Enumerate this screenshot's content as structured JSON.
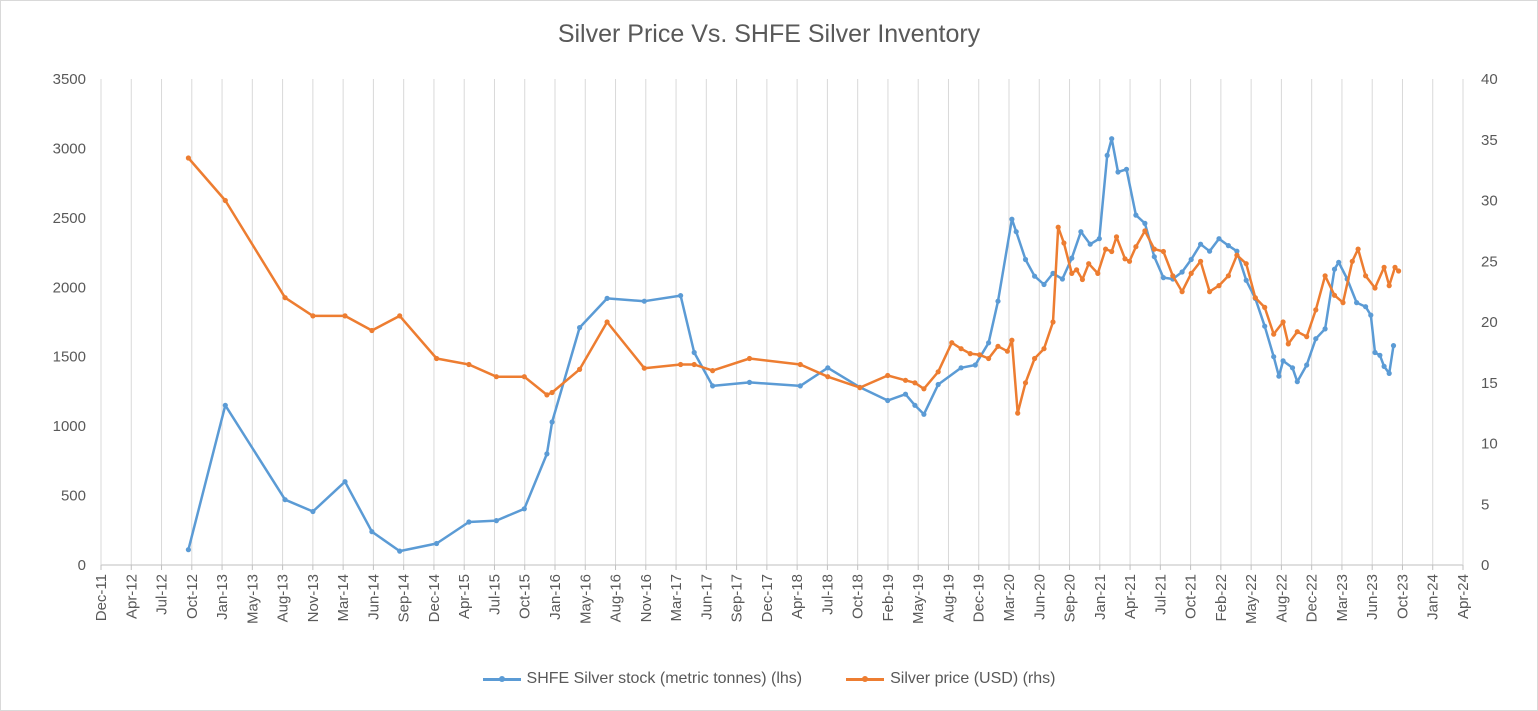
{
  "chart_data": {
    "type": "line",
    "title": "Silver Price Vs. SHFE Silver Inventory",
    "x_ticks": [
      "Dec-11",
      "Apr-12",
      "Jul-12",
      "Oct-12",
      "Jan-13",
      "May-13",
      "Aug-13",
      "Nov-13",
      "Mar-14",
      "Jun-14",
      "Sep-14",
      "Dec-14",
      "Apr-15",
      "Jul-15",
      "Oct-15",
      "Jan-16",
      "May-16",
      "Aug-16",
      "Nov-16",
      "Mar-17",
      "Jun-17",
      "Sep-17",
      "Dec-17",
      "Apr-18",
      "Jul-18",
      "Oct-18",
      "Feb-19",
      "May-19",
      "Aug-19",
      "Dec-19",
      "Mar-20",
      "Jun-20",
      "Sep-20",
      "Jan-21",
      "Apr-21",
      "Jul-21",
      "Oct-21",
      "Feb-22",
      "May-22",
      "Aug-22",
      "Dec-22",
      "Mar-23",
      "Jun-23",
      "Oct-23",
      "Jan-24",
      "Apr-24"
    ],
    "xlim": [
      "2011-12-01",
      "2024-04-01"
    ],
    "y_left": {
      "ylim": [
        0,
        3500
      ],
      "ticks": [
        "0",
        "500",
        "1000",
        "1500",
        "2000",
        "2500",
        "3000",
        "3500"
      ]
    },
    "y_right": {
      "ylim": [
        0,
        40
      ],
      "ticks": [
        "0",
        "5",
        "10",
        "15",
        "20",
        "25",
        "30",
        "35",
        "40"
      ]
    },
    "grid": "vertical",
    "legend_position": "bottom",
    "series": [
      {
        "name": "SHFE Silver stock (metric tonnes) (lhs)",
        "axis": "left",
        "color": "#5b9bd5",
        "points": [
          [
            "2012-09-15",
            110
          ],
          [
            "2013-01-15",
            1150
          ],
          [
            "2013-08-01",
            470
          ],
          [
            "2013-11-01",
            385
          ],
          [
            "2014-02-15",
            600
          ],
          [
            "2014-05-15",
            240
          ],
          [
            "2014-08-15",
            100
          ],
          [
            "2014-12-15",
            155
          ],
          [
            "2015-04-01",
            310
          ],
          [
            "2015-07-01",
            320
          ],
          [
            "2015-10-01",
            405
          ],
          [
            "2015-12-15",
            800
          ],
          [
            "2016-01-01",
            1030
          ],
          [
            "2016-04-01",
            1710
          ],
          [
            "2016-07-01",
            1920
          ],
          [
            "2016-11-01",
            1900
          ],
          [
            "2017-03-01",
            1940
          ],
          [
            "2017-04-15",
            1530
          ],
          [
            "2017-06-15",
            1290
          ],
          [
            "2017-10-15",
            1315
          ],
          [
            "2018-04-01",
            1290
          ],
          [
            "2018-07-01",
            1420
          ],
          [
            "2018-10-15",
            1280
          ],
          [
            "2019-01-15",
            1185
          ],
          [
            "2019-03-15",
            1230
          ],
          [
            "2019-04-15",
            1150
          ],
          [
            "2019-05-15",
            1085
          ],
          [
            "2019-07-01",
            1300
          ],
          [
            "2019-09-15",
            1420
          ],
          [
            "2019-11-01",
            1440
          ],
          [
            "2019-12-15",
            1600
          ],
          [
            "2020-01-15",
            1900
          ],
          [
            "2020-03-01",
            2490
          ],
          [
            "2020-03-15",
            2400
          ],
          [
            "2020-04-15",
            2200
          ],
          [
            "2020-05-15",
            2080
          ],
          [
            "2020-06-15",
            2020
          ],
          [
            "2020-07-15",
            2100
          ],
          [
            "2020-08-15",
            2060
          ],
          [
            "2020-09-15",
            2210
          ],
          [
            "2020-10-15",
            2400
          ],
          [
            "2020-11-15",
            2310
          ],
          [
            "2020-12-15",
            2350
          ],
          [
            "2021-01-10",
            2950
          ],
          [
            "2021-01-25",
            3070
          ],
          [
            "2021-02-15",
            2830
          ],
          [
            "2021-03-15",
            2850
          ],
          [
            "2021-04-15",
            2520
          ],
          [
            "2021-05-15",
            2460
          ],
          [
            "2021-06-15",
            2220
          ],
          [
            "2021-07-15",
            2070
          ],
          [
            "2021-08-15",
            2060
          ],
          [
            "2021-09-15",
            2110
          ],
          [
            "2021-10-15",
            2200
          ],
          [
            "2021-11-15",
            2310
          ],
          [
            "2021-12-15",
            2260
          ],
          [
            "2022-01-15",
            2350
          ],
          [
            "2022-02-15",
            2300
          ],
          [
            "2022-03-15",
            2260
          ],
          [
            "2022-04-15",
            2050
          ],
          [
            "2022-05-15",
            1920
          ],
          [
            "2022-06-15",
            1720
          ],
          [
            "2022-07-15",
            1500
          ],
          [
            "2022-08-01",
            1360
          ],
          [
            "2022-08-15",
            1470
          ],
          [
            "2022-09-15",
            1420
          ],
          [
            "2022-10-01",
            1320
          ],
          [
            "2022-11-01",
            1440
          ],
          [
            "2022-12-01",
            1630
          ],
          [
            "2023-01-01",
            1700
          ],
          [
            "2023-02-01",
            2130
          ],
          [
            "2023-02-15",
            2180
          ],
          [
            "2023-03-15",
            2060
          ],
          [
            "2023-04-15",
            1890
          ],
          [
            "2023-05-15",
            1860
          ],
          [
            "2023-06-01",
            1800
          ],
          [
            "2023-06-15",
            1530
          ],
          [
            "2023-07-01",
            1510
          ],
          [
            "2023-07-15",
            1430
          ],
          [
            "2023-08-01",
            1380
          ],
          [
            "2023-08-15",
            1580
          ]
        ]
      },
      {
        "name": "Silver price (USD) (rhs)",
        "axis": "right",
        "color": "#ed7d31",
        "points": [
          [
            "2012-09-15",
            33.5
          ],
          [
            "2013-01-15",
            30.0
          ],
          [
            "2013-08-01",
            22.0
          ],
          [
            "2013-11-01",
            20.5
          ],
          [
            "2014-02-15",
            20.5
          ],
          [
            "2014-05-15",
            19.3
          ],
          [
            "2014-08-15",
            20.5
          ],
          [
            "2014-12-15",
            17.0
          ],
          [
            "2015-04-01",
            16.5
          ],
          [
            "2015-07-01",
            15.5
          ],
          [
            "2015-10-01",
            15.5
          ],
          [
            "2015-12-15",
            14.0
          ],
          [
            "2016-01-01",
            14.2
          ],
          [
            "2016-04-01",
            16.1
          ],
          [
            "2016-07-01",
            20.0
          ],
          [
            "2016-11-01",
            16.2
          ],
          [
            "2017-03-01",
            16.5
          ],
          [
            "2017-04-15",
            16.5
          ],
          [
            "2017-06-15",
            16.0
          ],
          [
            "2017-10-15",
            17.0
          ],
          [
            "2018-04-01",
            16.5
          ],
          [
            "2018-07-01",
            15.5
          ],
          [
            "2018-10-15",
            14.6
          ],
          [
            "2019-01-15",
            15.6
          ],
          [
            "2019-03-15",
            15.2
          ],
          [
            "2019-04-15",
            15.0
          ],
          [
            "2019-05-15",
            14.5
          ],
          [
            "2019-07-01",
            15.9
          ],
          [
            "2019-08-15",
            18.3
          ],
          [
            "2019-09-15",
            17.8
          ],
          [
            "2019-10-15",
            17.4
          ],
          [
            "2019-11-15",
            17.3
          ],
          [
            "2019-12-15",
            17.0
          ],
          [
            "2020-01-15",
            18.0
          ],
          [
            "2020-02-15",
            17.6
          ],
          [
            "2020-03-01",
            18.5
          ],
          [
            "2020-03-20",
            12.5
          ],
          [
            "2020-04-15",
            15.0
          ],
          [
            "2020-05-15",
            17.0
          ],
          [
            "2020-06-15",
            17.8
          ],
          [
            "2020-07-15",
            20.0
          ],
          [
            "2020-08-01",
            27.8
          ],
          [
            "2020-08-20",
            26.5
          ],
          [
            "2020-09-15",
            24.0
          ],
          [
            "2020-10-01",
            24.3
          ],
          [
            "2020-10-20",
            23.5
          ],
          [
            "2020-11-10",
            24.8
          ],
          [
            "2020-12-10",
            24.0
          ],
          [
            "2021-01-05",
            26.0
          ],
          [
            "2021-01-25",
            25.8
          ],
          [
            "2021-02-10",
            27.0
          ],
          [
            "2021-03-10",
            25.2
          ],
          [
            "2021-03-25",
            25.0
          ],
          [
            "2021-04-15",
            26.2
          ],
          [
            "2021-05-15",
            27.5
          ],
          [
            "2021-06-15",
            26.0
          ],
          [
            "2021-07-15",
            25.8
          ],
          [
            "2021-08-15",
            23.8
          ],
          [
            "2021-09-15",
            22.5
          ],
          [
            "2021-10-15",
            24.0
          ],
          [
            "2021-11-15",
            25.0
          ],
          [
            "2021-12-15",
            22.5
          ],
          [
            "2022-01-15",
            23.0
          ],
          [
            "2022-02-15",
            23.8
          ],
          [
            "2022-03-15",
            25.5
          ],
          [
            "2022-04-15",
            24.8
          ],
          [
            "2022-05-15",
            22.0
          ],
          [
            "2022-06-15",
            21.2
          ],
          [
            "2022-07-15",
            19.0
          ],
          [
            "2022-08-15",
            20.0
          ],
          [
            "2022-09-01",
            18.2
          ],
          [
            "2022-10-01",
            19.2
          ],
          [
            "2022-11-01",
            18.8
          ],
          [
            "2022-12-01",
            21.0
          ],
          [
            "2023-01-01",
            23.8
          ],
          [
            "2023-02-01",
            22.2
          ],
          [
            "2023-03-01",
            21.6
          ],
          [
            "2023-04-01",
            25.0
          ],
          [
            "2023-04-20",
            26.0
          ],
          [
            "2023-05-15",
            23.8
          ],
          [
            "2023-06-15",
            22.8
          ],
          [
            "2023-07-15",
            24.5
          ],
          [
            "2023-08-01",
            23.0
          ],
          [
            "2023-08-20",
            24.5
          ],
          [
            "2023-09-01",
            24.2
          ]
        ]
      }
    ]
  }
}
